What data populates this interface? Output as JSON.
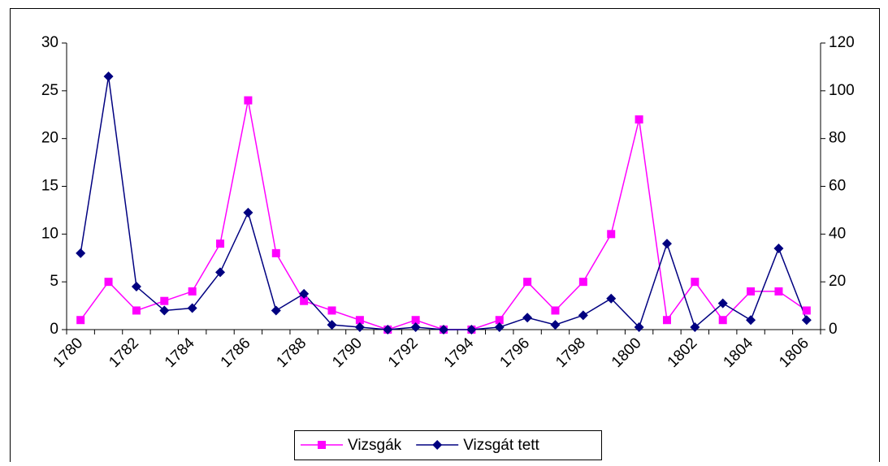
{
  "chart_data": {
    "type": "line",
    "categories": [
      "1780",
      null,
      "1782",
      null,
      "1784",
      null,
      "1786",
      null,
      "1788",
      null,
      "1790",
      null,
      "1792",
      null,
      "1794",
      null,
      "1796",
      null,
      "1798",
      null,
      "1800",
      null,
      "1802",
      null,
      "1804",
      null,
      "1806"
    ],
    "series": [
      {
        "name": "Vizsgák",
        "color": "#ff00ff",
        "marker": "square",
        "values": [
          1,
          5,
          2,
          3,
          4,
          9,
          24,
          8,
          3,
          2,
          1,
          0,
          1,
          0,
          0,
          1,
          5,
          2,
          5,
          10,
          22,
          1,
          5,
          1,
          4,
          4,
          2
        ]
      },
      {
        "name": "Vizsgát tett",
        "color": "#000080",
        "marker": "diamond",
        "axis": "y2",
        "values": [
          32,
          106,
          18,
          8,
          9,
          24,
          49,
          8,
          15,
          2,
          1,
          0,
          1,
          0,
          0,
          1,
          5,
          2,
          6,
          13,
          1,
          36,
          1,
          11,
          4,
          34,
          4
        ]
      }
    ],
    "ylim": [
      0,
      30
    ],
    "yticks": [
      0,
      5,
      10,
      15,
      20,
      25,
      30
    ],
    "y2lim": [
      0,
      120
    ],
    "y2ticks": [
      0,
      20,
      40,
      60,
      80,
      100,
      120
    ],
    "legend": "bottom"
  }
}
